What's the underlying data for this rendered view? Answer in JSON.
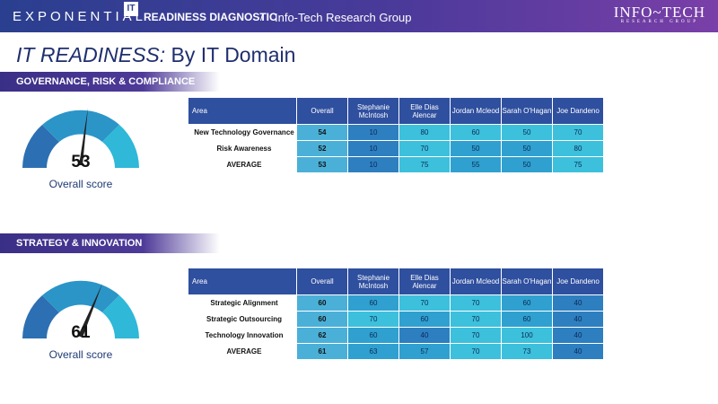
{
  "header": {
    "brand": "EXPONENTIAL",
    "badge": "IT",
    "title": "READINESS DIAGNOSTIC",
    "separator": "/",
    "org": "Info-Tech Research Group",
    "logo_main": "INFO~TECH",
    "logo_sub": "RESEARCH GROUP"
  },
  "page": {
    "title_em": "IT READINESS:",
    "title_rest": " By IT Domain"
  },
  "colors": {
    "header_start": "#2a3f8f",
    "header_end": "#7a3fa8",
    "table_header": "#2f4f9f",
    "cell_dark": "#2d7fc0",
    "cell_mid": "#2fa0cf",
    "cell_light": "#3cc0dc",
    "title": "#1f2f6e"
  },
  "sections": [
    {
      "title": "GOVERNANCE, RISK & COMPLIANCE",
      "gauge": {
        "score": "53",
        "label": "Overall score"
      },
      "headers": [
        "Area",
        "Overall",
        "Stephanie McIntosh",
        "Elle Dias Alencar",
        "Jordan Mcleod",
        "Sarah O'Hagan",
        "Joe Dandeno"
      ],
      "rows": [
        {
          "area": "New Technology Governance",
          "values": [
            "54",
            "10",
            "80",
            "60",
            "50",
            "70"
          ]
        },
        {
          "area": "Risk Awareness",
          "values": [
            "52",
            "10",
            "70",
            "50",
            "50",
            "80"
          ]
        },
        {
          "area": "AVERAGE",
          "values": [
            "53",
            "10",
            "75",
            "55",
            "50",
            "75"
          ]
        }
      ]
    },
    {
      "title": "STRATEGY & INNOVATION",
      "gauge": {
        "score": "61",
        "label": "Overall score"
      },
      "headers": [
        "Area",
        "Overall",
        "Stephanie McIntosh",
        "Elle Dias Alencar",
        "Jordan Mcleod",
        "Sarah O'Hagan",
        "Joe Dandeno"
      ],
      "rows": [
        {
          "area": "Strategic Alignment",
          "values": [
            "60",
            "60",
            "70",
            "70",
            "60",
            "40"
          ]
        },
        {
          "area": "Strategic Outsourcing",
          "values": [
            "60",
            "70",
            "60",
            "70",
            "60",
            "40"
          ]
        },
        {
          "area": "Technology Innovation",
          "values": [
            "62",
            "60",
            "40",
            "70",
            "100",
            "40"
          ]
        },
        {
          "area": "AVERAGE",
          "values": [
            "61",
            "63",
            "57",
            "70",
            "73",
            "40"
          ]
        }
      ]
    }
  ]
}
